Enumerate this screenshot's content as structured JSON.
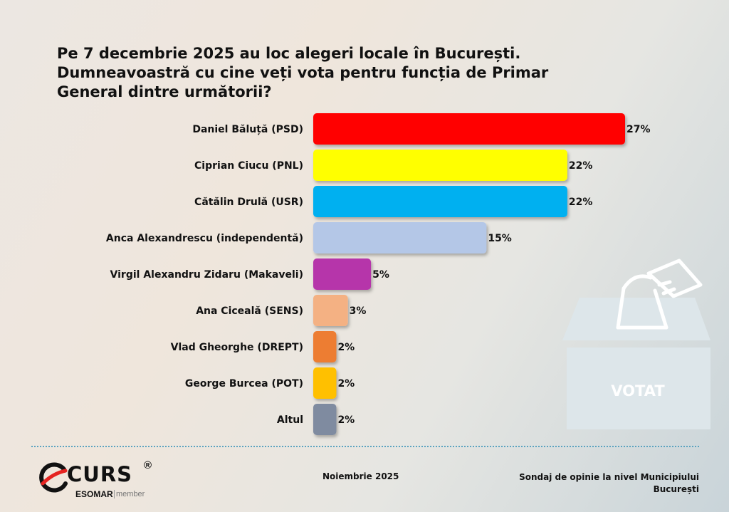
{
  "title": {
    "line1": "Pe 7 decembrie 2025 au loc alegeri locale în București.",
    "line2": "Dumneavoastră cu cine veți vota pentru funcția de Primar",
    "line3": "General dintre următorii?"
  },
  "chart_data": {
    "type": "bar",
    "orientation": "horizontal",
    "categories": [
      "Daniel Băluță (PSD)",
      "Ciprian Ciucu (PNL)",
      "Cătălin Drulă (USR)",
      "Anca Alexandrescu (independentă)",
      "Virgil Alexandru Zidaru (Makaveli)",
      "Ana Ciceală (SENS)",
      "Vlad Gheorghe (DREPT)",
      "George Burcea (POT)",
      "Altul"
    ],
    "values": [
      27,
      22,
      22,
      15,
      5,
      3,
      2,
      2,
      2
    ],
    "value_labels": [
      "27%",
      "22%",
      "22%",
      "15%",
      "5%",
      "3%",
      "2%",
      "2%",
      "2%"
    ],
    "colors": [
      "#ff0000",
      "#ffff00",
      "#00b0f0",
      "#b4c7e7",
      "#b634aa",
      "#f4b183",
      "#ed7d31",
      "#ffc000",
      "#7f8ba0"
    ],
    "xlim": [
      0,
      27
    ],
    "grid": false,
    "legend": "none"
  },
  "ballot_box": {
    "label": "VOTAT",
    "icon": "ballot-box-icon",
    "color": "#dde6ea"
  },
  "footer": {
    "date": "Noiembrie 2025",
    "source_line1": "Sondaj de opinie la nivel Municipiului",
    "source_line2": "București"
  },
  "logo": {
    "name": "CURS",
    "registered": "®",
    "esomar": "ESOMAR",
    "member": "member",
    "icon": "curs-swoosh-icon"
  }
}
